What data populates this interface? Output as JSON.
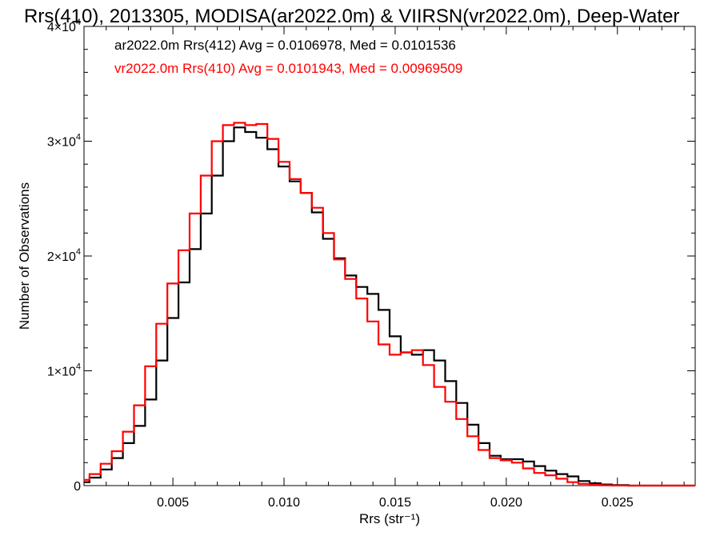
{
  "chart_data": {
    "type": "line",
    "title": "Rrs(410), 2013305, MODISA(ar2022.0m) & VIIRSN(vr2022.0m), Deep-Water",
    "xlabel": "Rrs (str⁻¹)",
    "ylabel": "Number of Observations",
    "xlim": [
      0.001,
      0.0285
    ],
    "ylim": [
      0,
      40000
    ],
    "x_ticks": [
      0.005,
      0.01,
      0.015,
      0.02,
      0.025
    ],
    "x_tick_labels": [
      "0.005",
      "0.010",
      "0.015",
      "0.020",
      "0.025"
    ],
    "y_ticks": [
      0,
      10000,
      20000,
      30000,
      40000
    ],
    "y_tick_labels": [
      {
        "mant": "0",
        "exp": ""
      },
      {
        "mant": "1×10",
        "exp": "4"
      },
      {
        "mant": "2×10",
        "exp": "4"
      },
      {
        "mant": "3×10",
        "exp": "4"
      },
      {
        "mant": "4×10",
        "exp": "4"
      }
    ],
    "grid": false,
    "step": true,
    "legend_position": "top-left",
    "annotations": [
      {
        "text": "ar2022.0m Rrs(412) Avg = 0.0106978, Med = 0.0101536",
        "color": "#000000"
      },
      {
        "text": "vr2022.0m Rrs(410) Avg = 0.0101943, Med = 0.00969509",
        "color": "#ff0000"
      }
    ],
    "series": [
      {
        "color": "#000000",
        "points": [
          [
            0.001,
            300
          ],
          [
            0.0015,
            700
          ],
          [
            0.002,
            1400
          ],
          [
            0.0025,
            2400
          ],
          [
            0.003,
            3700
          ],
          [
            0.0035,
            5200
          ],
          [
            0.004,
            7500
          ],
          [
            0.0045,
            10900
          ],
          [
            0.005,
            14600
          ],
          [
            0.0055,
            17700
          ],
          [
            0.006,
            20600
          ],
          [
            0.0065,
            23700
          ],
          [
            0.007,
            27000
          ],
          [
            0.0075,
            30000
          ],
          [
            0.008,
            31200
          ],
          [
            0.0085,
            30800
          ],
          [
            0.009,
            30300
          ],
          [
            0.0095,
            29300
          ],
          [
            0.01,
            27800
          ],
          [
            0.0105,
            26500
          ],
          [
            0.011,
            25500
          ],
          [
            0.0115,
            23800
          ],
          [
            0.012,
            21500
          ],
          [
            0.0125,
            19800
          ],
          [
            0.013,
            18300
          ],
          [
            0.0135,
            17300
          ],
          [
            0.014,
            16700
          ],
          [
            0.0145,
            15300
          ],
          [
            0.015,
            13000
          ],
          [
            0.0155,
            11600
          ],
          [
            0.016,
            11400
          ],
          [
            0.0165,
            11800
          ],
          [
            0.017,
            10900
          ],
          [
            0.0175,
            9100
          ],
          [
            0.018,
            7200
          ],
          [
            0.0185,
            5300
          ],
          [
            0.019,
            3700
          ],
          [
            0.0195,
            2600
          ],
          [
            0.02,
            2300
          ],
          [
            0.0205,
            2300
          ],
          [
            0.021,
            2100
          ],
          [
            0.0215,
            1700
          ],
          [
            0.022,
            1300
          ],
          [
            0.0225,
            1000
          ],
          [
            0.023,
            800
          ],
          [
            0.0235,
            400
          ],
          [
            0.024,
            200
          ],
          [
            0.0245,
            100
          ],
          [
            0.025,
            50
          ],
          [
            0.026,
            0
          ],
          [
            0.0285,
            0
          ]
        ]
      },
      {
        "color": "#ff0000",
        "points": [
          [
            0.001,
            500
          ],
          [
            0.0015,
            1000
          ],
          [
            0.002,
            1900
          ],
          [
            0.0025,
            3000
          ],
          [
            0.003,
            4700
          ],
          [
            0.0035,
            7000
          ],
          [
            0.004,
            10400
          ],
          [
            0.0045,
            14100
          ],
          [
            0.005,
            17600
          ],
          [
            0.0055,
            20500
          ],
          [
            0.006,
            23700
          ],
          [
            0.0065,
            27000
          ],
          [
            0.007,
            30000
          ],
          [
            0.0075,
            31400
          ],
          [
            0.008,
            31600
          ],
          [
            0.0085,
            31400
          ],
          [
            0.009,
            31500
          ],
          [
            0.0095,
            30200
          ],
          [
            0.01,
            28200
          ],
          [
            0.0105,
            26700
          ],
          [
            0.011,
            25500
          ],
          [
            0.0115,
            24200
          ],
          [
            0.012,
            22000
          ],
          [
            0.0125,
            19700
          ],
          [
            0.013,
            18000
          ],
          [
            0.0135,
            16300
          ],
          [
            0.014,
            14300
          ],
          [
            0.0145,
            12300
          ],
          [
            0.015,
            11400
          ],
          [
            0.0155,
            11600
          ],
          [
            0.016,
            11800
          ],
          [
            0.0165,
            10500
          ],
          [
            0.017,
            8600
          ],
          [
            0.0175,
            7300
          ],
          [
            0.018,
            5800
          ],
          [
            0.0185,
            4300
          ],
          [
            0.019,
            3100
          ],
          [
            0.0195,
            2400
          ],
          [
            0.02,
            2200
          ],
          [
            0.0205,
            2000
          ],
          [
            0.021,
            1500
          ],
          [
            0.0215,
            1100
          ],
          [
            0.022,
            900
          ],
          [
            0.0225,
            600
          ],
          [
            0.023,
            300
          ],
          [
            0.0235,
            150
          ],
          [
            0.024,
            70
          ],
          [
            0.0245,
            30
          ],
          [
            0.025,
            10
          ],
          [
            0.026,
            0
          ],
          [
            0.0285,
            0
          ]
        ]
      }
    ]
  }
}
